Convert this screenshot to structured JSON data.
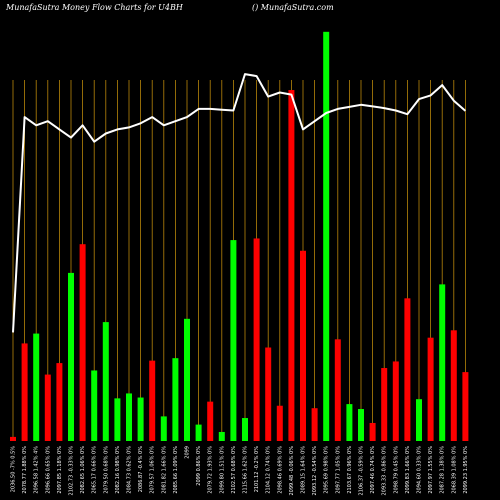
{
  "header": {
    "title": "MunafaSutra  Money Flow  Charts for U4BH",
    "site": "() MunafaSutra.com"
  },
  "colors": {
    "background": "#000000",
    "inflow": "#00ff00",
    "outflow": "#ff0000",
    "grid": "#b8860b",
    "price_line": "#ffffff"
  },
  "chart_data": {
    "type": "bar",
    "title": "MunafaSutra  Money Flow  Charts for U4BH",
    "categories": [
      "2036.50 -7% 0.5%",
      "2078.77 1.88% 0%",
      "2096.58 1.42% 4%",
      "2096.66 0.65% 0%",
      "2097.85 1.18% 0%",
      "2102.73 -0.33% 0%",
      "2082.65 1.06% 0%",
      "2065.17 0.66% 0%",
      "2079.50 0.68% 0%",
      "2082.16 0.98% 0%",
      "2084.73 0.62% 0%",
      "2086.87 -0.4% 0%",
      "2079.57 1.06% 0%",
      "2081.82 1.66% 0%",
      "2085.66 1.09% 0%",
      "2099",
      "2099 0.86% 0%",
      "2079.72 1.93% 0%",
      "2099.80 1.51% 0%",
      "2102.57 0.68% 0%",
      "2115.66 1.62% 0%",
      "2101.12 -0.2% 0%",
      "2104.12 0.74% 0%",
      "2098.46 0.69% 0%",
      "2099.48 -0.06% 0%",
      "2089.15 1.64% 0%",
      "2093.12 -0.54% 0%",
      "2095.69 0.98% 0%",
      "2097.77 1.05% 0%",
      "2103.67 0.96% 0%",
      "2106.37 -0.59% 0%",
      "2097.46 0.74% 0%",
      "2093.33 -0.86% 0%",
      "2098.79 0.45% 0%",
      "2099.83 1.66% 0%",
      "2094.60 0.33% 0%",
      "2097.97 1.55% 0%",
      "2087.28 1.38% 0%",
      "2068.39 1.08% 0%",
      "2099.23 1.95% 0%"
    ],
    "series": [
      {
        "role": "money flow volume",
        "values": [
          5,
          119,
          131,
          81,
          95,
          205,
          240,
          86,
          145,
          52,
          58,
          53,
          98,
          30,
          101,
          149,
          20,
          48,
          11,
          245,
          28,
          247,
          114,
          43,
          428,
          232,
          40,
          499,
          124,
          45,
          39,
          22,
          89,
          97,
          174,
          51,
          126,
          191,
          135,
          84
        ],
        "direction": [
          "out",
          "out",
          "in",
          "out",
          "out",
          "in",
          "out",
          "in",
          "in",
          "in",
          "in",
          "in",
          "out",
          "in",
          "in",
          "in",
          "in",
          "out",
          "in",
          "in",
          "in",
          "out",
          "out",
          "out",
          "out",
          "out",
          "out",
          "in",
          "out",
          "in",
          "in",
          "out",
          "out",
          "out",
          "out",
          "in",
          "out",
          "in",
          "out",
          "out"
        ]
      },
      {
        "role": "price",
        "values": [
          2036.5,
          2089,
          2087,
          2088,
          2086,
          2084,
          2087,
          2083,
          2085,
          2086,
          2086.5,
          2087.5,
          2089,
          2087,
          2088,
          2089,
          2091,
          2091,
          2090.8,
          2090.6,
          2099.5,
          2099,
          2094,
          2095,
          2094.5,
          2086,
          2088,
          2090,
          2091,
          2091.5,
          2092,
          2091.6,
          2091.2,
          2090.6,
          2089.7,
          2093.4,
          2094.3,
          2096.8,
          2093,
          2090.5
        ]
      }
    ],
    "ylim": [
      0,
      500
    ],
    "price_ylim": [
      2010,
      2110
    ],
    "grid": true,
    "gridlines": "vertical"
  }
}
